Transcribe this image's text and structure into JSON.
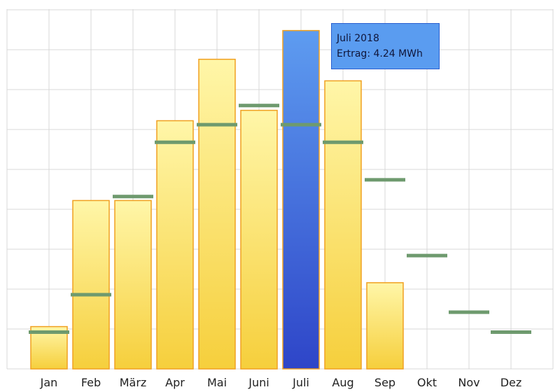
{
  "chart_data": {
    "type": "bar",
    "categories": [
      "Jan",
      "Feb",
      "März",
      "Apr",
      "Mai",
      "Juni",
      "Juli",
      "Aug",
      "Sep",
      "Okt",
      "Nov",
      "Dez"
    ],
    "series": [
      {
        "values": [
          0.53,
          2.11,
          2.11,
          3.11,
          3.88,
          3.24,
          4.24,
          3.61,
          1.08,
          null,
          null,
          null
        ]
      },
      {
        "values": [
          0.46,
          0.93,
          2.16,
          2.84,
          3.06,
          3.3,
          3.06,
          2.84,
          2.37,
          1.42,
          0.71,
          0.46
        ]
      }
    ],
    "highlight_index": 6,
    "ylim": [
      0,
      4.5
    ],
    "grid": true,
    "colors": {
      "bar": "#f6d24a",
      "bar_light": "#fff6a8",
      "bar_border": "#f0a020",
      "highlight": "#3a63d8",
      "highlight_light": "#5e9cf0",
      "target_line": "#6e9a6e",
      "grid": "#d8d8d8"
    }
  },
  "tooltip": {
    "title": "Juli 2018",
    "value": "Ertrag: 4.24 MWh"
  }
}
